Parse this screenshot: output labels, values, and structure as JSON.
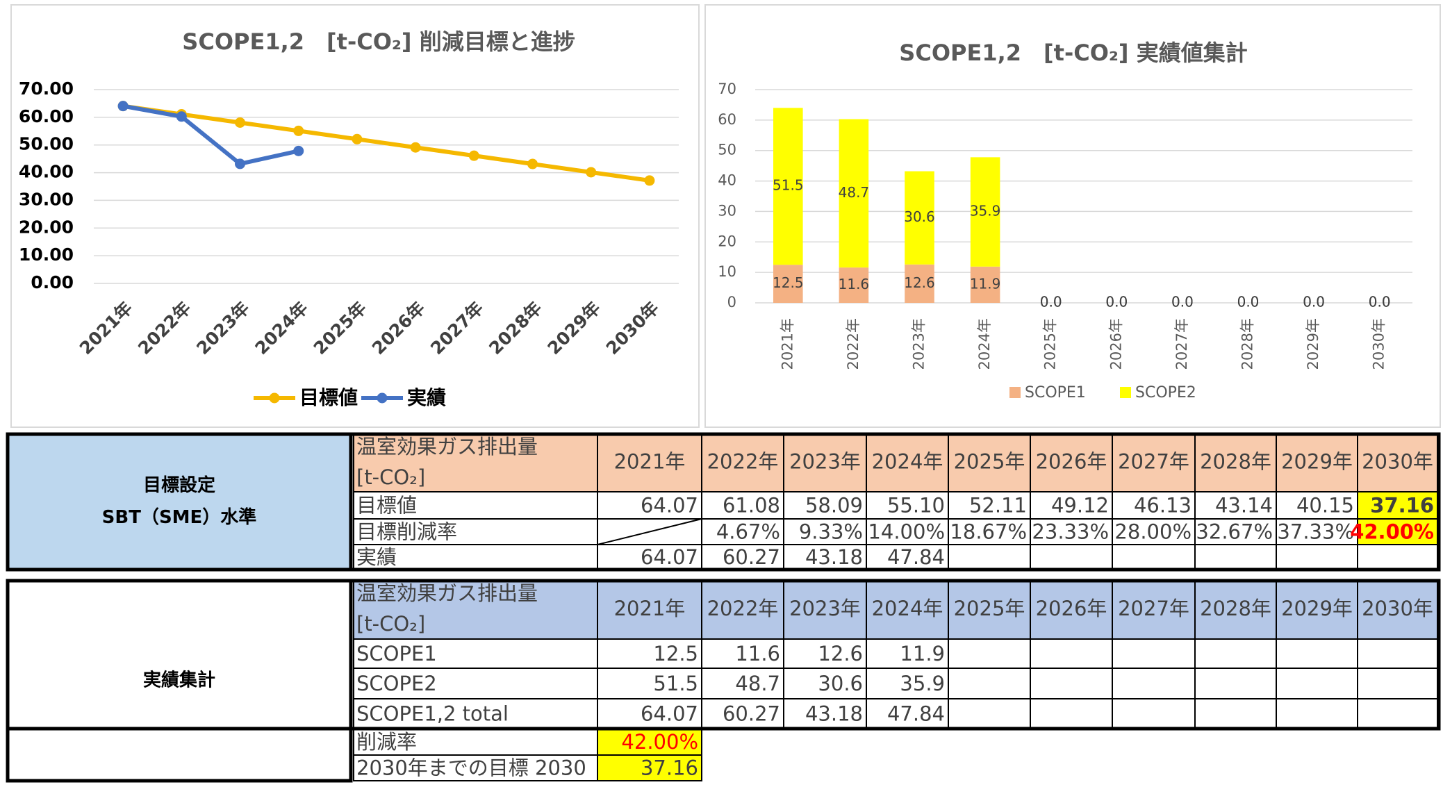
{
  "chart_data": [
    {
      "type": "line",
      "title": "SCOPE1,2　[t-CO₂] 削減目標と進捗",
      "categories": [
        "2021年",
        "2022年",
        "2023年",
        "2024年",
        "2025年",
        "2026年",
        "2027年",
        "2028年",
        "2029年",
        "2030年"
      ],
      "series": [
        {
          "name": "目標値",
          "color": "#f5b800",
          "values": [
            64.07,
            61.08,
            58.09,
            55.1,
            52.11,
            49.12,
            46.13,
            43.14,
            40.15,
            37.16
          ]
        },
        {
          "name": "実績",
          "color": "#4472c4",
          "values": [
            64.07,
            60.27,
            43.18,
            47.84,
            null,
            null,
            null,
            null,
            null,
            null
          ]
        }
      ],
      "ylim": [
        0,
        70
      ],
      "yticks": [
        {
          "value": 0,
          "label": "0.00"
        },
        {
          "value": 10,
          "label": "10.00"
        },
        {
          "value": 20,
          "label": "20.00"
        },
        {
          "value": 30,
          "label": "30.00"
        },
        {
          "value": 40,
          "label": "40.00"
        },
        {
          "value": 50,
          "label": "50.00"
        },
        {
          "value": 60,
          "label": "60.00"
        },
        {
          "value": 70,
          "label": "70.00"
        }
      ],
      "grid": true,
      "legend": "bottom"
    },
    {
      "type": "stacked_bar",
      "title": "SCOPE1,2　[t-CO₂] 実績値集計",
      "categories": [
        "2021年",
        "2022年",
        "2023年",
        "2024年",
        "2025年",
        "2026年",
        "2027年",
        "2028年",
        "2029年",
        "2030年"
      ],
      "series": [
        {
          "name": "SCOPE1",
          "color": "#f4b183",
          "values": [
            12.5,
            11.6,
            12.6,
            11.9,
            0,
            0,
            0,
            0,
            0,
            0
          ],
          "value_labels": [
            "12.5",
            "11.6",
            "12.6",
            "11.9",
            "0.0",
            "0.0",
            "0.0",
            "0.0",
            "0.0",
            "0.0"
          ]
        },
        {
          "name": "SCOPE2",
          "color": "#ffff00",
          "values": [
            51.5,
            48.7,
            30.6,
            35.9,
            0,
            0,
            0,
            0,
            0,
            0
          ],
          "value_labels": [
            "51.5",
            "48.7",
            "30.6",
            "35.9",
            "0.0",
            "0.0",
            "0.0",
            "0.0",
            "0.0",
            "0.0"
          ]
        }
      ],
      "ylim": [
        0,
        70
      ],
      "yticks": [
        0,
        10,
        20,
        30,
        40,
        50,
        60,
        70
      ],
      "grid": true,
      "legend": "bottom"
    }
  ],
  "tables": [
    {
      "label": [
        "目標設定",
        "SBT（SME）水準"
      ],
      "header": [
        "温室効果ガス排出量",
        "[t-CO₂]"
      ],
      "years": [
        "2021年",
        "2022年",
        "2023年",
        "2024年",
        "2025年",
        "2026年",
        "2027年",
        "2028年",
        "2029年",
        "2030年"
      ],
      "rows": [
        {
          "name": "目標値",
          "cells": [
            "64.07",
            "61.08",
            "58.09",
            "55.10",
            "52.11",
            "49.12",
            "46.13",
            "43.14",
            "40.15",
            "37.16"
          ]
        },
        {
          "name": "目標削減率",
          "cells": [
            null,
            "4.67%",
            "9.33%",
            "14.00%",
            "18.67%",
            "23.33%",
            "28.00%",
            "32.67%",
            "37.33%",
            "42.00%"
          ]
        },
        {
          "name": "実績",
          "cells": [
            "64.07",
            "60.27",
            "43.18",
            "47.84"
          ]
        }
      ]
    },
    {
      "label": [
        "実績集計"
      ],
      "header": [
        "温室効果ガス排出量",
        "[t-CO₂]"
      ],
      "years": [
        "2021年",
        "2022年",
        "2023年",
        "2024年",
        "2025年",
        "2026年",
        "2027年",
        "2028年",
        "2029年",
        "2030年"
      ],
      "rows": [
        {
          "name": "SCOPE1",
          "cells": [
            "12.5",
            "11.6",
            "12.6",
            "11.9"
          ]
        },
        {
          "name": "SCOPE2",
          "cells": [
            "51.5",
            "48.7",
            "30.6",
            "35.9"
          ]
        },
        {
          "name": "SCOPE1,2 total",
          "cells": [
            "64.07",
            "60.27",
            "43.18",
            "47.84"
          ]
        },
        {
          "name": "削減率",
          "cells": [
            "42.00%"
          ]
        },
        {
          "name": "2030年までの目標 2030",
          "cells": [
            "37.16"
          ]
        }
      ]
    }
  ]
}
